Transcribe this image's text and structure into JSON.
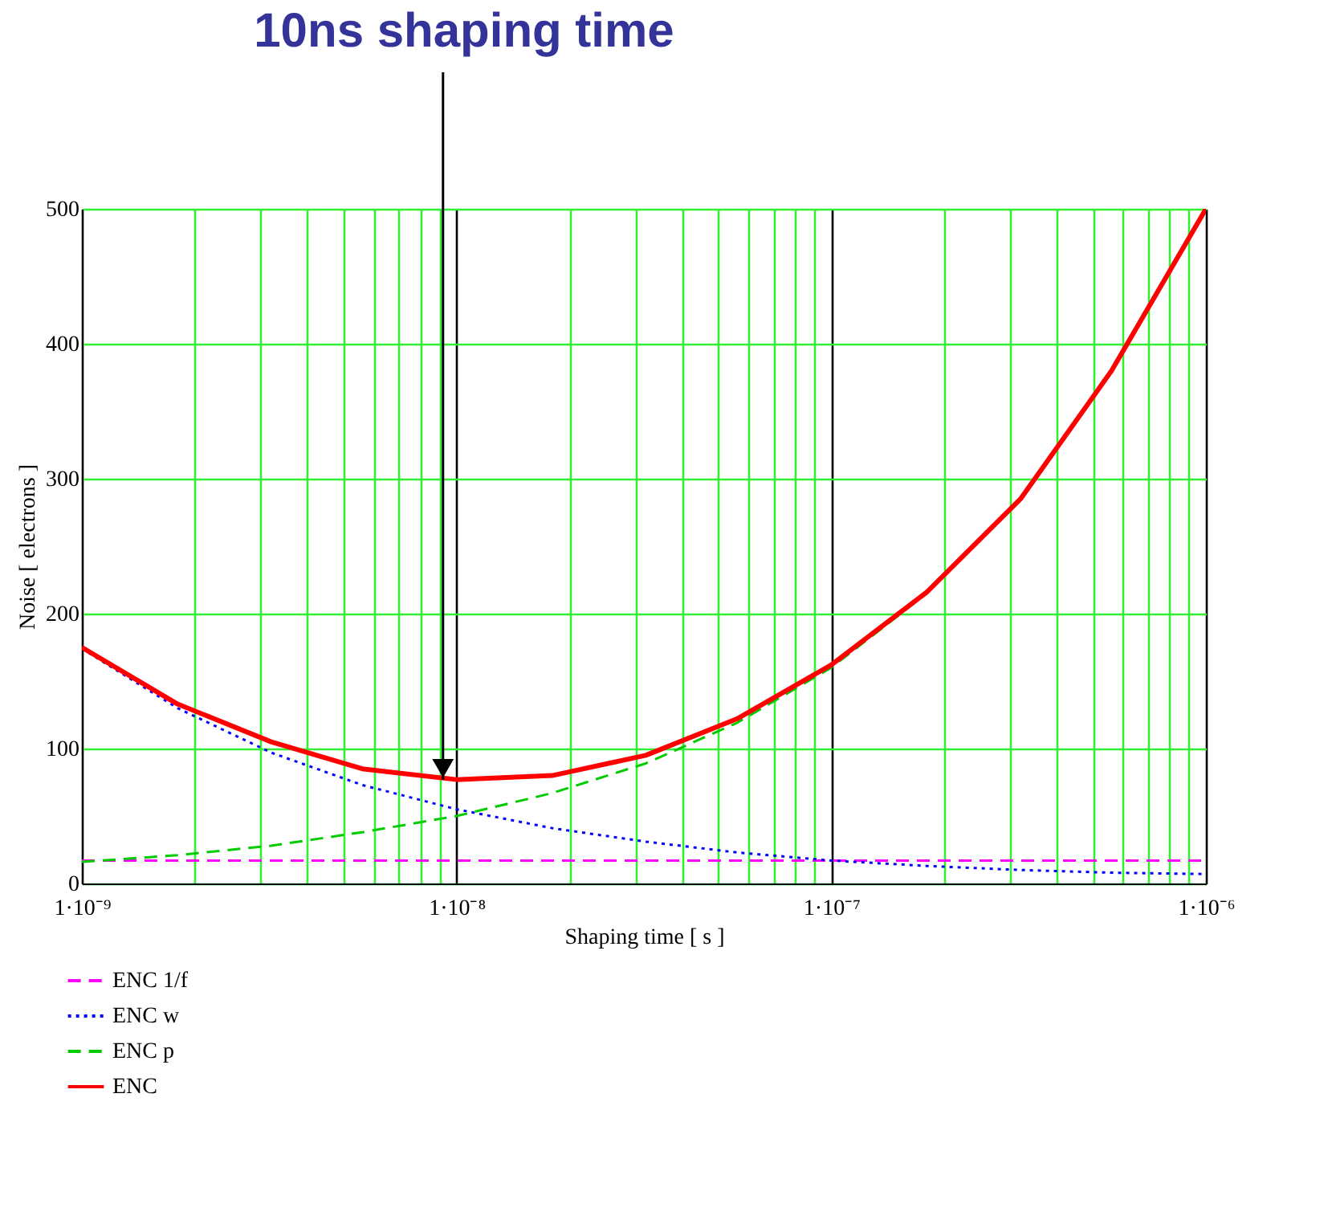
{
  "chart_data": {
    "type": "line",
    "xlabel": "Shaping time [ s ]",
    "ylabel": "Noise [ electrons ]",
    "x": [
      1e-09,
      1.8e-09,
      3.2e-09,
      5.6e-09,
      1e-08,
      1.8e-08,
      3.2e-08,
      5.6e-08,
      1e-07,
      1.8e-07,
      3.2e-07,
      5.6e-07,
      1e-06
    ],
    "series": [
      {
        "name": "ENC 1/f",
        "color": "#ff00ff",
        "line_style": "dashed",
        "values": [
          17,
          17,
          17,
          17,
          17,
          17,
          17,
          17,
          17,
          17,
          17,
          17,
          17
        ]
      },
      {
        "name": "ENC w",
        "color": "#0000ff",
        "line_style": "dotted",
        "values": [
          174,
          130,
          97,
          73,
          55,
          41,
          31,
          23,
          17,
          13,
          10,
          8,
          7
        ]
      },
      {
        "name": "ENC p",
        "color": "#00cc00",
        "line_style": "dashed",
        "values": [
          16,
          21,
          28,
          38,
          50,
          67,
          89,
          119,
          160,
          215,
          285,
          380,
          500
        ]
      },
      {
        "name": "ENC",
        "color": "#ff0000",
        "line_style": "solid",
        "values": [
          175,
          133,
          105,
          85,
          77,
          80,
          95,
          122,
          162,
          216,
          285,
          380,
          500
        ]
      }
    ],
    "log": "x",
    "xlim": [
      1e-09,
      1e-06
    ],
    "ylim": [
      0,
      500
    ],
    "yticks": [
      0,
      100,
      200,
      300,
      400,
      500
    ],
    "xticks": [
      {
        "value": 1e-09,
        "label": "1·10⁻⁹"
      },
      {
        "value": 2e-09,
        "label": null
      },
      {
        "value": 3e-09,
        "label": null
      },
      {
        "value": 4e-09,
        "label": null
      },
      {
        "value": 5e-09,
        "label": null
      },
      {
        "value": 6e-09,
        "label": null
      },
      {
        "value": 7e-09,
        "label": null
      },
      {
        "value": 8e-09,
        "label": null
      },
      {
        "value": 9e-09,
        "label": null
      },
      {
        "value": 1e-08,
        "label": "1·10⁻⁸"
      },
      {
        "value": 2e-08,
        "label": null
      },
      {
        "value": 3e-08,
        "label": null
      },
      {
        "value": 4e-08,
        "label": null
      },
      {
        "value": 5e-08,
        "label": null
      },
      {
        "value": 6e-08,
        "label": null
      },
      {
        "value": 7e-08,
        "label": null
      },
      {
        "value": 8e-08,
        "label": null
      },
      {
        "value": 9e-08,
        "label": null
      },
      {
        "value": 1e-07,
        "label": "1·10⁻⁷"
      },
      {
        "value": 2e-07,
        "label": null
      },
      {
        "value": 3e-07,
        "label": null
      },
      {
        "value": 4e-07,
        "label": null
      },
      {
        "value": 5e-07,
        "label": null
      },
      {
        "value": 6e-07,
        "label": null
      },
      {
        "value": 7e-07,
        "label": null
      },
      {
        "value": 8e-07,
        "label": null
      },
      {
        "value": 9e-07,
        "label": null
      },
      {
        "value": 1e-06,
        "label": "1·10⁻⁶"
      }
    ],
    "grid": true,
    "legend": "bottom left",
    "annotations": [
      {
        "text": "10ns shaping time",
        "x": 9.2e-09,
        "y": 77
      }
    ]
  }
}
